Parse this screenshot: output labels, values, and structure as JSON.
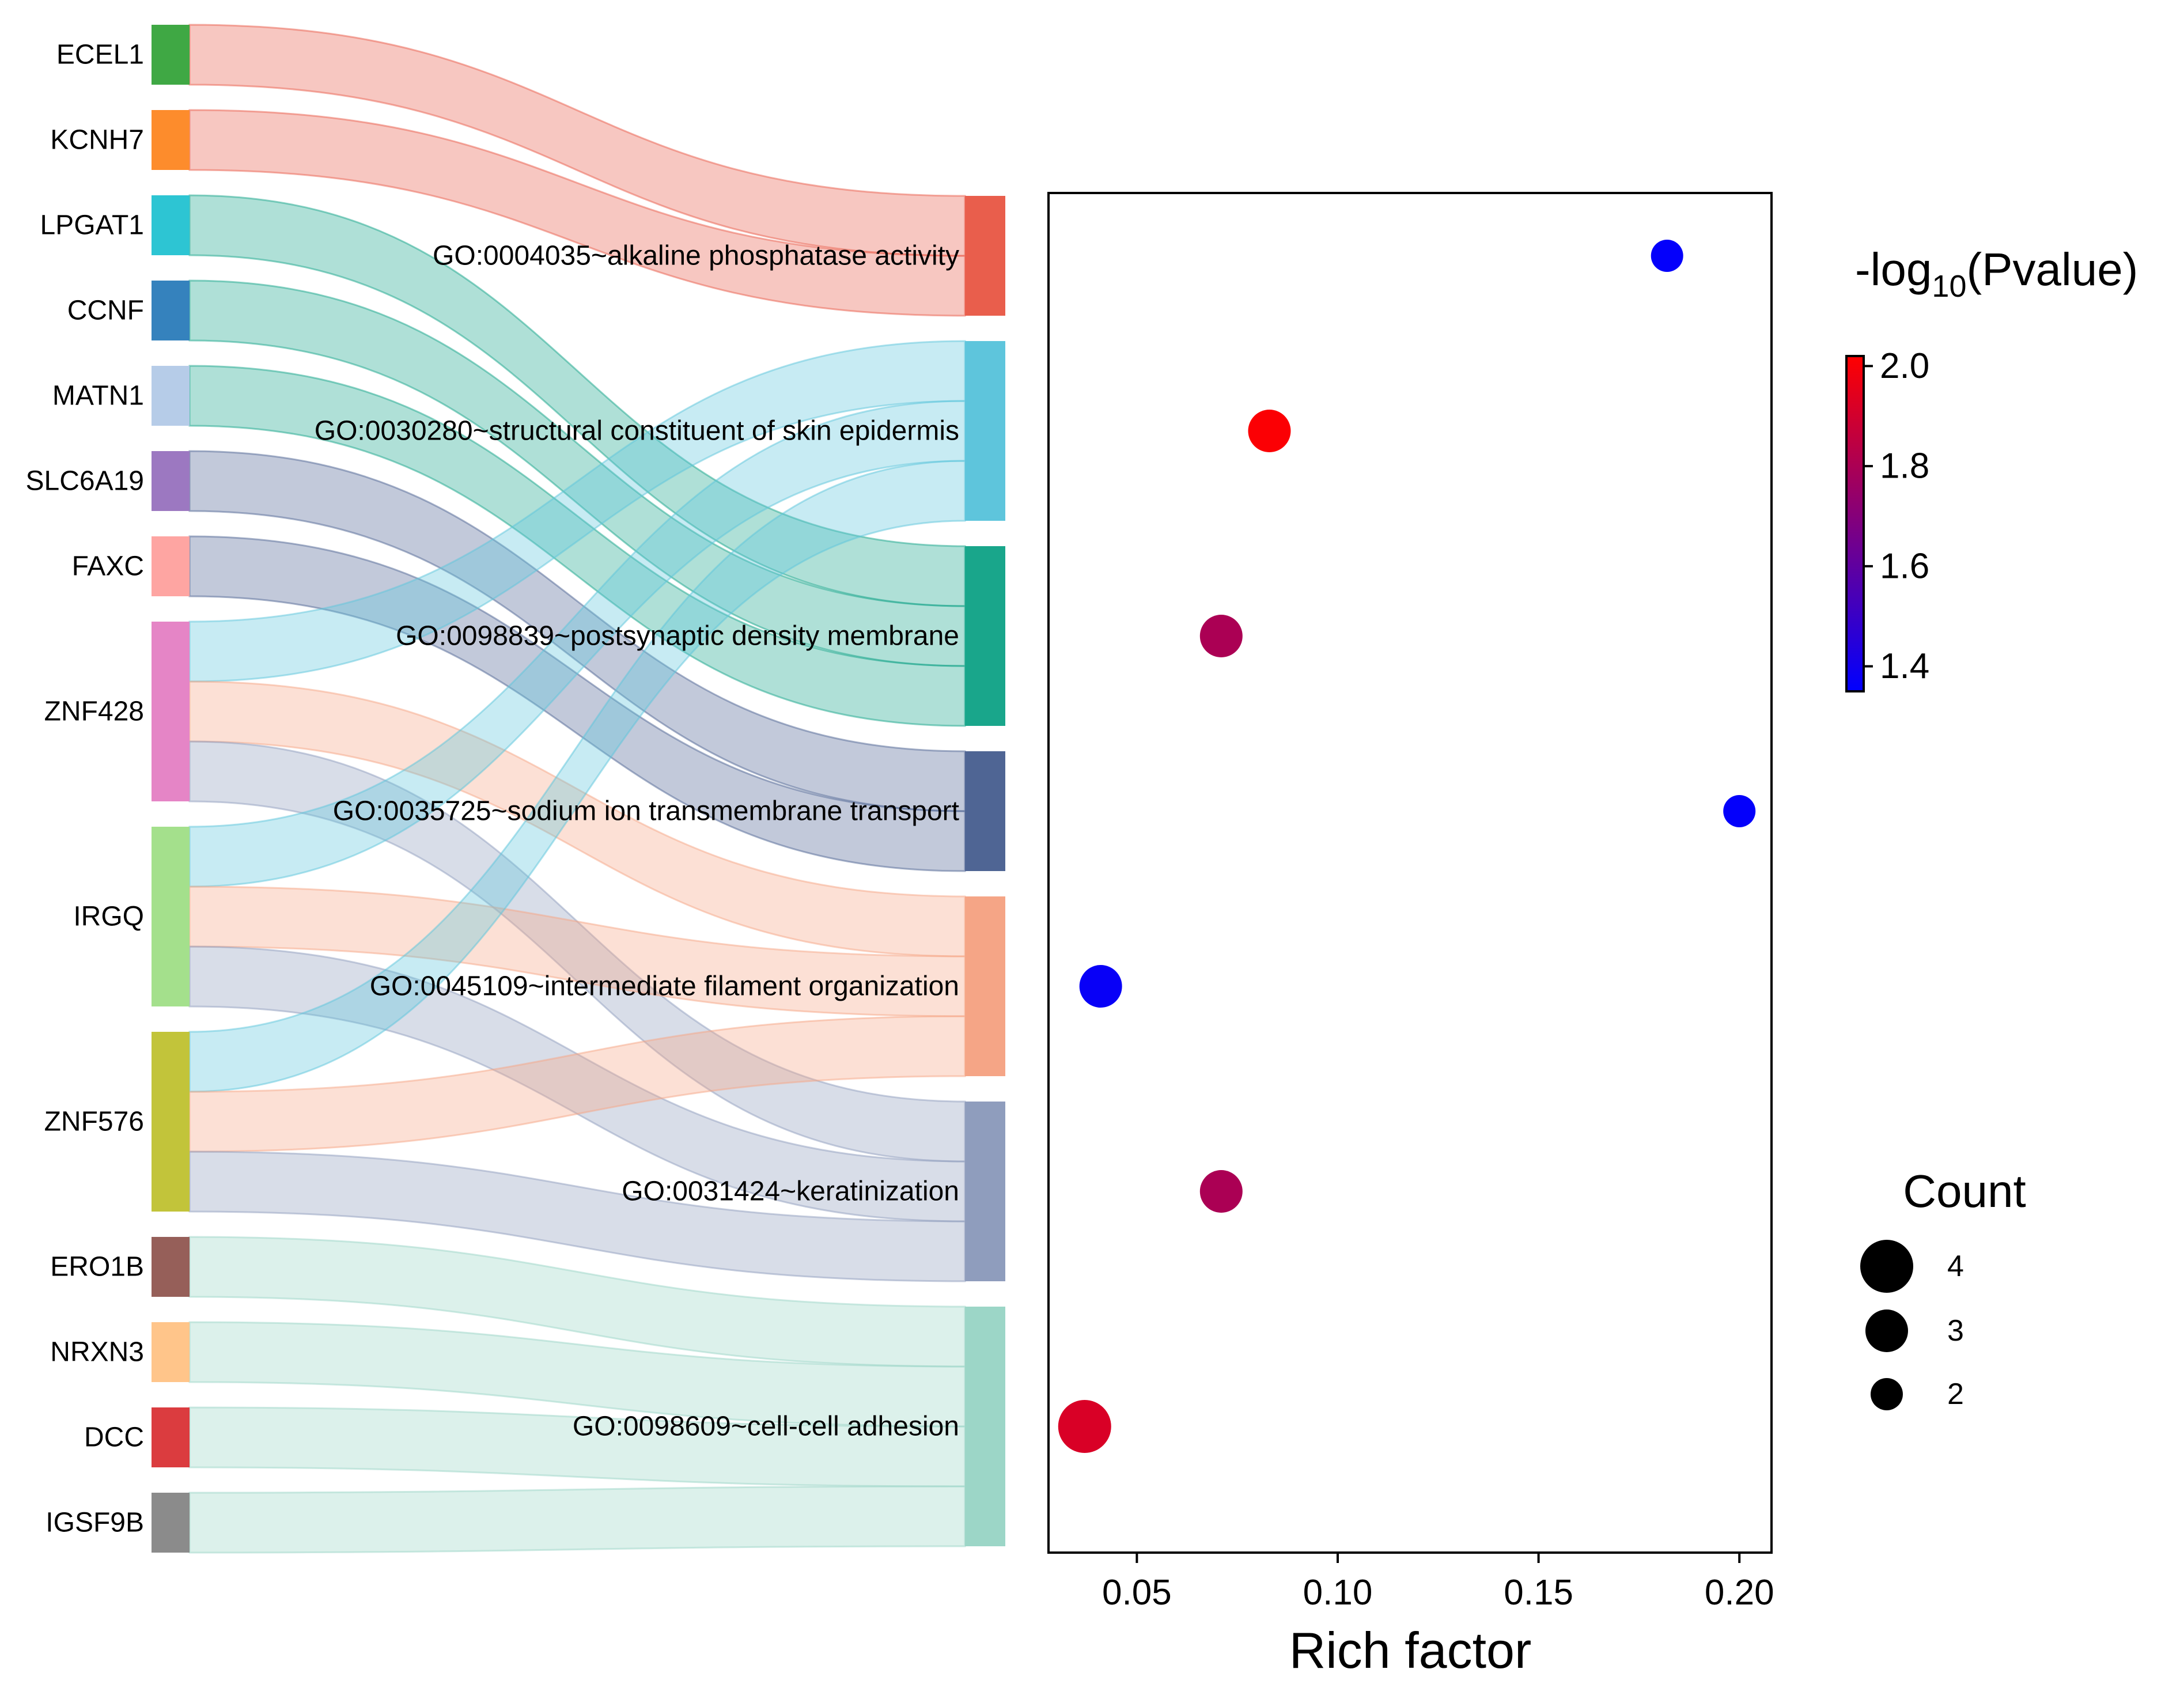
{
  "chart_data": [
    {
      "type": "sankey",
      "genes": [
        {
          "name": "ECEL1",
          "color": "#3fa844"
        },
        {
          "name": "KCNH7",
          "color": "#fd8c2c"
        },
        {
          "name": "LPGAT1",
          "color": "#2dc5d3"
        },
        {
          "name": "CCNF",
          "color": "#3582bd"
        },
        {
          "name": "MATN1",
          "color": "#b6cce8"
        },
        {
          "name": "SLC6A19",
          "color": "#9c78c1"
        },
        {
          "name": "FAXC",
          "color": "#fea5a2"
        },
        {
          "name": "ZNF428",
          "color": "#e585c6"
        },
        {
          "name": "IRGQ",
          "color": "#a4e08c"
        },
        {
          "name": "ZNF576",
          "color": "#c2c43a"
        },
        {
          "name": "ERO1B",
          "color": "#965f59"
        },
        {
          "name": "NRXN3",
          "color": "#ffc58a"
        },
        {
          "name": "DCC",
          "color": "#db3c3f"
        },
        {
          "name": "IGSF9B",
          "color": "#8b8b8b"
        }
      ],
      "terms": [
        {
          "name": "GO:0004035~alkaline phosphatase activity",
          "color": "#e95e4c"
        },
        {
          "name": "GO:0030280~structural constituent of skin epidermis",
          "color": "#5ec5dc"
        },
        {
          "name": "GO:0098839~postsynaptic density membrane",
          "color": "#19a68b"
        },
        {
          "name": "GO:0035725~sodium ion transmembrane transport",
          "color": "#4f6594"
        },
        {
          "name": "GO:0045109~intermediate filament organization",
          "color": "#f5a586"
        },
        {
          "name": "GO:0031424~keratinization",
          "color": "#8f9dbd"
        },
        {
          "name": "GO:0098609~cell-cell adhesion",
          "color": "#9cd6c7"
        }
      ],
      "links": [
        {
          "gene": "ECEL1",
          "term": "GO:0004035~alkaline phosphatase activity"
        },
        {
          "gene": "KCNH7",
          "term": "GO:0004035~alkaline phosphatase activity"
        },
        {
          "gene": "LPGAT1",
          "term": "GO:0098839~postsynaptic density membrane"
        },
        {
          "gene": "CCNF",
          "term": "GO:0098839~postsynaptic density membrane"
        },
        {
          "gene": "MATN1",
          "term": "GO:0098839~postsynaptic density membrane"
        },
        {
          "gene": "SLC6A19",
          "term": "GO:0035725~sodium ion transmembrane transport"
        },
        {
          "gene": "FAXC",
          "term": "GO:0035725~sodium ion transmembrane transport"
        },
        {
          "gene": "ZNF428",
          "term": "GO:0030280~structural constituent of skin epidermis"
        },
        {
          "gene": "ZNF428",
          "term": "GO:0045109~intermediate filament organization"
        },
        {
          "gene": "ZNF428",
          "term": "GO:0031424~keratinization"
        },
        {
          "gene": "IRGQ",
          "term": "GO:0030280~structural constituent of skin epidermis"
        },
        {
          "gene": "IRGQ",
          "term": "GO:0045109~intermediate filament organization"
        },
        {
          "gene": "IRGQ",
          "term": "GO:0031424~keratinization"
        },
        {
          "gene": "ZNF576",
          "term": "GO:0030280~structural constituent of skin epidermis"
        },
        {
          "gene": "ZNF576",
          "term": "GO:0045109~intermediate filament organization"
        },
        {
          "gene": "ZNF576",
          "term": "GO:0031424~keratinization"
        },
        {
          "gene": "ERO1B",
          "term": "GO:0098609~cell-cell adhesion"
        },
        {
          "gene": "NRXN3",
          "term": "GO:0098609~cell-cell adhesion"
        },
        {
          "gene": "DCC",
          "term": "GO:0098609~cell-cell adhesion"
        },
        {
          "gene": "IGSF9B",
          "term": "GO:0098609~cell-cell adhesion"
        }
      ]
    },
    {
      "type": "scatter",
      "xlabel": "Rich factor",
      "ylabel": "",
      "xlim": [
        0.028,
        0.208
      ],
      "xticks": [
        0.05,
        0.1,
        0.15,
        0.2
      ],
      "xtick_labels": [
        "0.05",
        "0.10",
        "0.15",
        "0.20"
      ],
      "points": [
        {
          "term": "GO:0004035~alkaline phosphatase activity",
          "rich_factor": 0.182,
          "count": 2,
          "neg_log10_p": 1.36
        },
        {
          "term": "GO:0030280~structural constituent of skin epidermis",
          "rich_factor": 0.083,
          "count": 3,
          "neg_log10_p": 2.01
        },
        {
          "term": "GO:0098839~postsynaptic density membrane",
          "rich_factor": 0.071,
          "count": 3,
          "neg_log10_p": 1.8
        },
        {
          "term": "GO:0035725~sodium ion transmembrane transport",
          "rich_factor": 0.2,
          "count": 2,
          "neg_log10_p": 1.36
        },
        {
          "term": "GO:0045109~intermediate filament organization",
          "rich_factor": 0.041,
          "count": 3,
          "neg_log10_p": 1.37
        },
        {
          "term": "GO:0031424~keratinization",
          "rich_factor": 0.071,
          "count": 3,
          "neg_log10_p": 1.8
        },
        {
          "term": "GO:0098609~cell-cell adhesion",
          "rich_factor": 0.037,
          "count": 4,
          "neg_log10_p": 1.92
        }
      ],
      "colorbar": {
        "title_prefix": "-log",
        "title_sub": "10",
        "title_suffix": "(Pvalue)",
        "range": [
          1.35,
          2.02
        ],
        "ticks": [
          1.4,
          1.6,
          1.8,
          2.0
        ],
        "tick_labels": [
          "1.4",
          "1.6",
          "1.8",
          "2.0"
        ],
        "low_color": "#0000ff",
        "high_color": "#ff0000"
      },
      "size_legend": {
        "title": "Count",
        "entries": [
          4,
          3,
          2
        ],
        "entry_labels": [
          "4",
          "3",
          "2"
        ]
      }
    }
  ]
}
